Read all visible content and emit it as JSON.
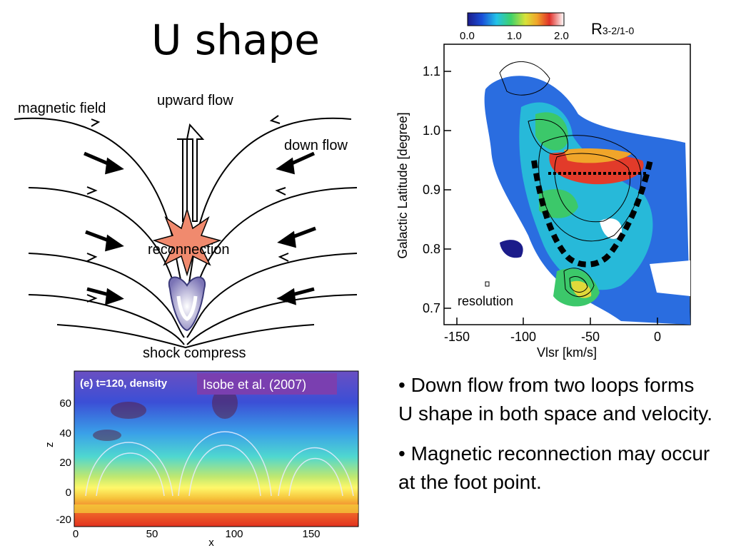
{
  "slide": {
    "title": "U shape"
  },
  "diagram": {
    "labels": {
      "magnetic_field": "magnetic field",
      "upward_flow": "upward flow",
      "down_flow": "down flow",
      "reconnection": "reconnection",
      "shock_compress": "shock compress"
    }
  },
  "lv_plot": {
    "colorbar": {
      "label_main": "R",
      "label_sub": "3-2/1-0",
      "ticks": [
        "0.0",
        "1.0",
        "2.0"
      ]
    },
    "y_axis": {
      "label": "Galactic Latitude [degree]",
      "ticks": [
        "1.1",
        "1.0",
        "0.9",
        "0.8",
        "0.7"
      ]
    },
    "x_axis": {
      "label": "Vlsr [km/s]",
      "ticks": [
        "-150",
        "-100",
        "-50",
        "0"
      ]
    },
    "resolution_label": "resolution"
  },
  "simulation": {
    "panel_label": "(e) t=120, density",
    "credit": "Isobe et al. (2007)",
    "y_label": "z",
    "y_ticks": [
      "60",
      "40",
      "20",
      "0",
      "-20"
    ],
    "x_label": "x",
    "x_ticks": [
      "0",
      "50",
      "100",
      "150"
    ]
  },
  "bullets": [
    "• Down flow from two loops forms U shape in both space and velocity.",
    "• Magnetic reconnection may occur at the foot point."
  ]
}
